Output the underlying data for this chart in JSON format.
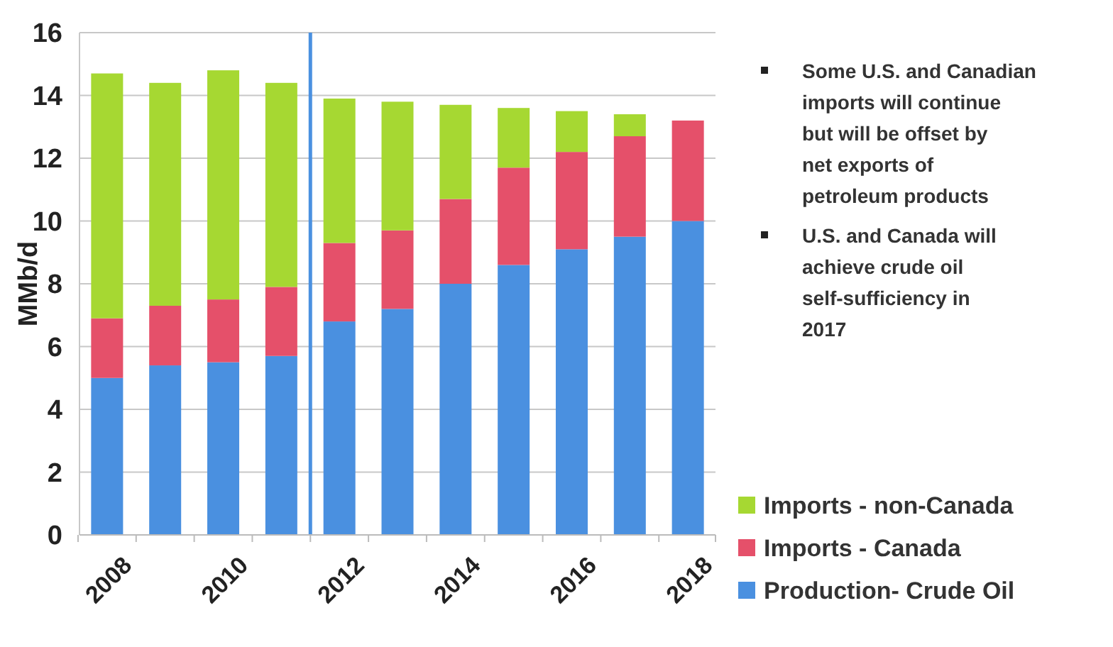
{
  "chart_data": {
    "type": "bar",
    "stacked": true,
    "ylabel": "MMb/d",
    "categories": [
      "2008",
      null,
      "2010",
      null,
      "2012",
      null,
      "2014",
      null,
      "2016",
      null,
      "2018"
    ],
    "series": [
      {
        "name": "Production- Crude Oil",
        "color": "#4a90e0",
        "values": [
          5.0,
          5.4,
          5.5,
          5.7,
          6.8,
          7.2,
          8.0,
          8.6,
          9.1,
          9.5,
          10.0
        ]
      },
      {
        "name": "Imports - Canada",
        "color": "#e5506a",
        "values": [
          1.9,
          1.9,
          2.0,
          2.2,
          2.5,
          2.5,
          2.7,
          3.1,
          3.1,
          3.2,
          3.2
        ]
      },
      {
        "name": "Imports - non-Canada",
        "color": "#a6d832",
        "values": [
          7.8,
          7.1,
          7.3,
          6.5,
          4.6,
          4.1,
          3.0,
          1.9,
          1.3,
          0.7,
          0
        ]
      }
    ],
    "ylim": [
      0,
      16
    ],
    "yticks": [
      0,
      2,
      4,
      6,
      8,
      10,
      12,
      14,
      16
    ],
    "grid": "y",
    "legend": "bottom right",
    "ref_lines": [
      {
        "axis": "x",
        "value": "2012",
        "color": "#4a90e0"
      }
    ],
    "annotations": [
      "Some U.S. and Canadian imports will continue but will be offset by net exports of petroleum products",
      "U.S. and Canada will achieve crude oil self-sufficiency in 2017"
    ]
  }
}
